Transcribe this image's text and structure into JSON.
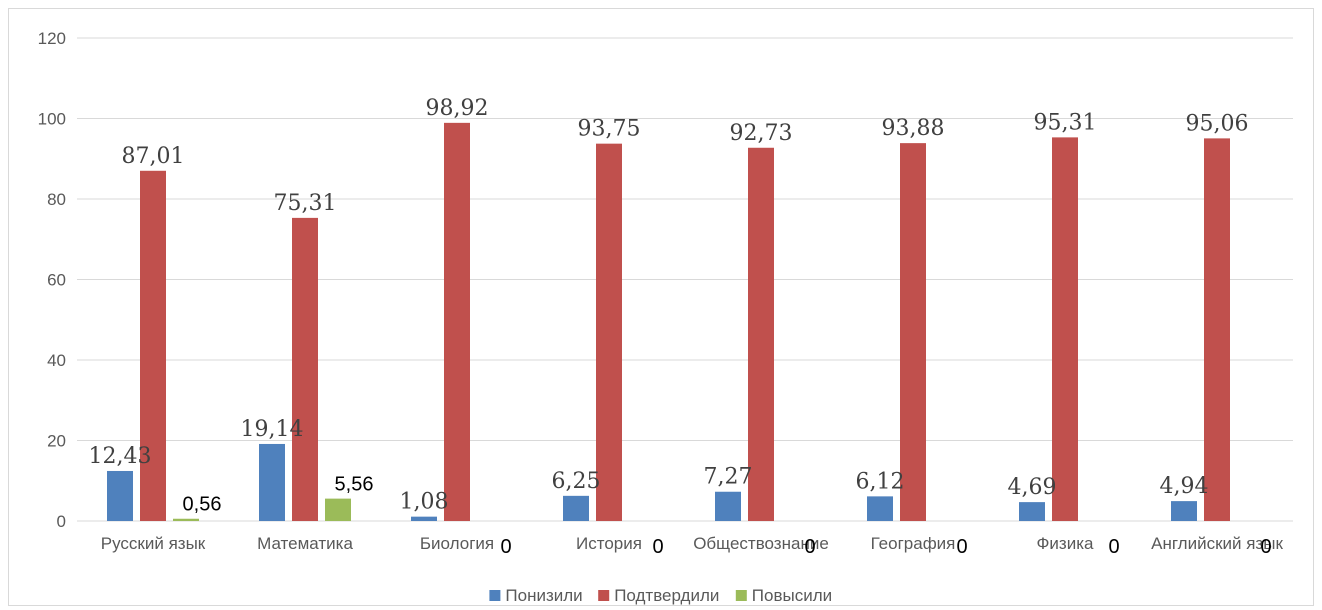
{
  "chart_data": {
    "type": "bar",
    "categories": [
      "Русский язык",
      "Математика",
      "Биология",
      "История",
      "Обществознание",
      "География",
      "Физика",
      "Английский язык"
    ],
    "series": [
      {
        "name": "Понизили",
        "color": "#4f81bd",
        "values": [
          12.43,
          19.14,
          1.08,
          6.25,
          7.27,
          6.12,
          4.69,
          4.94
        ],
        "labels": [
          "12,43",
          "19,14",
          "1,08",
          "6,25",
          "7,27",
          "6,12",
          "4,69",
          "4,94"
        ]
      },
      {
        "name": "Подтвердили",
        "color": "#c0504d",
        "values": [
          87.01,
          75.31,
          98.92,
          93.75,
          92.73,
          93.88,
          95.31,
          95.06
        ],
        "labels": [
          "87,01",
          "75,31",
          "98,92",
          "93,75",
          "92,73",
          "93,88",
          "95,31",
          "95,06"
        ]
      },
      {
        "name": "Повысили",
        "color": "#9bbb59",
        "values": [
          0.56,
          5.56,
          0,
          0,
          0,
          0,
          0,
          0
        ],
        "labels": [
          "0,56",
          "5,56",
          "0",
          "0",
          "0",
          "0",
          "0",
          "0"
        ]
      }
    ],
    "title": "",
    "xlabel": "",
    "ylabel": "",
    "ylim": [
      0,
      120
    ],
    "yticks": [
      0,
      20,
      40,
      60,
      80,
      100,
      120
    ],
    "grid": true,
    "legend_position": "bottom"
  }
}
